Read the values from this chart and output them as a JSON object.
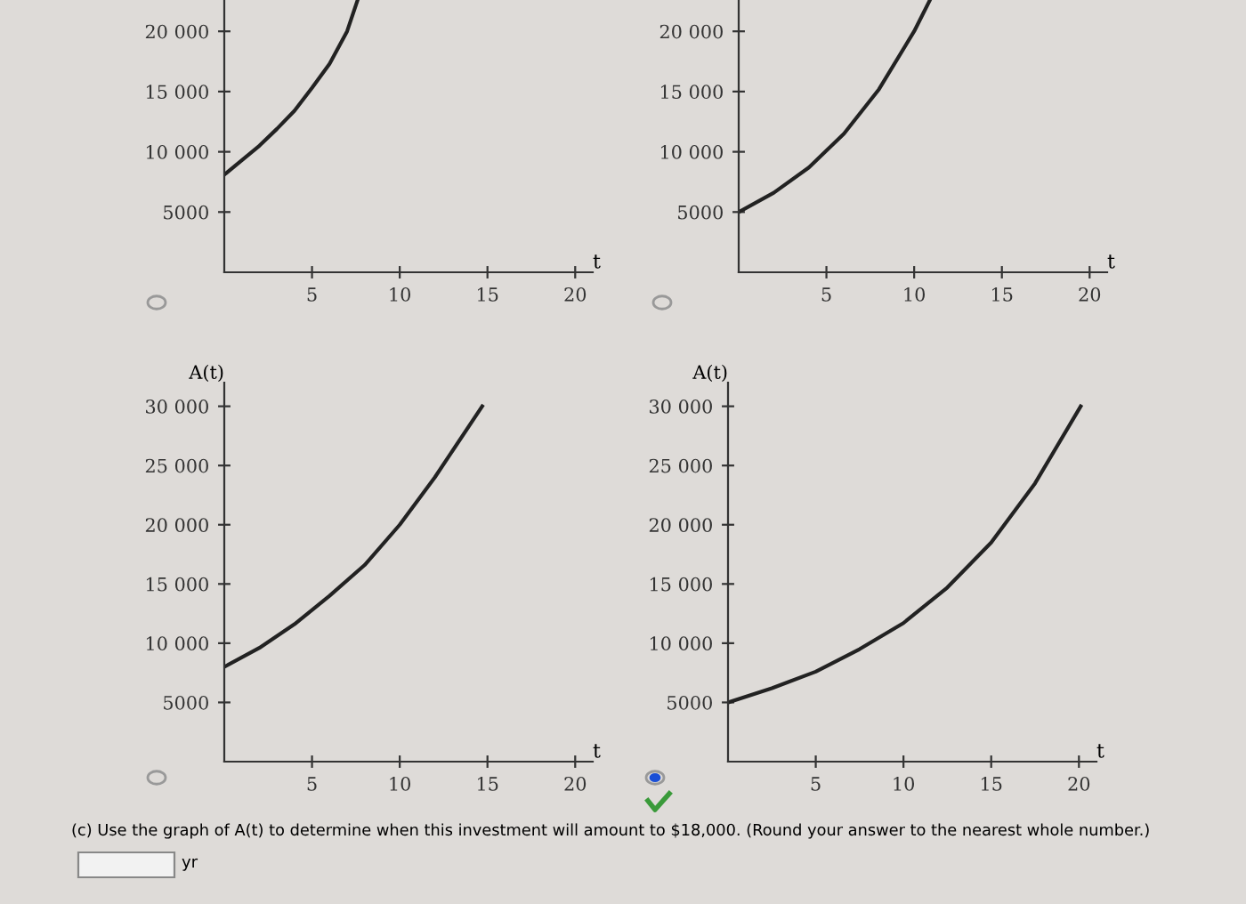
{
  "chart_data": [
    {
      "type": "line",
      "xlabel": "t",
      "x": [
        0,
        1,
        2,
        3,
        4,
        5,
        6,
        7,
        7.6
      ],
      "series": [
        {
          "color": "#222222",
          "values": [
            8100,
            9300,
            10500,
            11900,
            13400,
            15300,
            17300,
            20000,
            22600
          ]
        }
      ],
      "xlim": [
        0,
        21
      ],
      "ylim": [
        0,
        22600
      ],
      "xticks": [
        5,
        10,
        15,
        20
      ],
      "yticks": [
        5000,
        {
          "value": 10000,
          "label": "10 000"
        },
        {
          "value": 15000,
          "label": "15 000"
        },
        {
          "value": 20000,
          "label": "20 000"
        }
      ]
    },
    {
      "type": "line",
      "xlabel": "t",
      "x": [
        0,
        2,
        4,
        6,
        8,
        10,
        10.9
      ],
      "series": [
        {
          "color": "#222222",
          "values": [
            5000,
            6600,
            8700,
            11500,
            15200,
            20000,
            22600
          ]
        }
      ],
      "xlim": [
        0,
        21
      ],
      "ylim": [
        0,
        22600
      ],
      "xticks": [
        5,
        10,
        15,
        20
      ],
      "yticks": [
        5000,
        {
          "value": 10000,
          "label": "10 000"
        },
        {
          "value": 15000,
          "label": "15 000"
        },
        {
          "value": 20000,
          "label": "20 000"
        }
      ]
    },
    {
      "type": "line",
      "xlabel": "t",
      "ylabel": "A(t)",
      "x": [
        0,
        2,
        4,
        6,
        8,
        10,
        12,
        14.7
      ],
      "series": [
        {
          "color": "#222222",
          "values": [
            8000,
            9600,
            11600,
            14000,
            16600,
            20000,
            24000,
            30000
          ]
        }
      ],
      "xlim": [
        0,
        21
      ],
      "ylim": [
        0,
        32000
      ],
      "xticks": [
        5,
        10,
        15,
        20
      ],
      "yticks": [
        5000,
        {
          "value": 10000,
          "label": "10 000"
        },
        {
          "value": 15000,
          "label": "15 000"
        },
        {
          "value": 20000,
          "label": "20 000"
        },
        {
          "value": 25000,
          "label": "25 000"
        },
        {
          "value": 30000,
          "label": "30 000"
        }
      ]
    },
    {
      "type": "line",
      "xlabel": "t",
      "ylabel": "A(t)",
      "x": [
        0,
        2.5,
        5,
        7.5,
        10,
        12.5,
        15,
        17.5,
        20.1
      ],
      "series": [
        {
          "color": "#222222",
          "values": [
            5000,
            6200,
            7600,
            9500,
            11700,
            14700,
            18500,
            23500,
            30000
          ]
        }
      ],
      "xlim": [
        0,
        21
      ],
      "ylim": [
        0,
        32000
      ],
      "xticks": [
        5,
        10,
        15,
        20
      ],
      "yticks": [
        5000,
        {
          "value": 10000,
          "label": "10 000"
        },
        {
          "value": 15000,
          "label": "15 000"
        },
        {
          "value": 20000,
          "label": "20 000"
        },
        {
          "value": 25000,
          "label": "25 000"
        },
        {
          "value": 30000,
          "label": "30 000"
        }
      ],
      "annotations": [
        "(c) Use the graph of A(t) to determine when this investment will amount to $18,000. (Round your answer to the nearest whole number.)",
        "yr"
      ]
    }
  ]
}
